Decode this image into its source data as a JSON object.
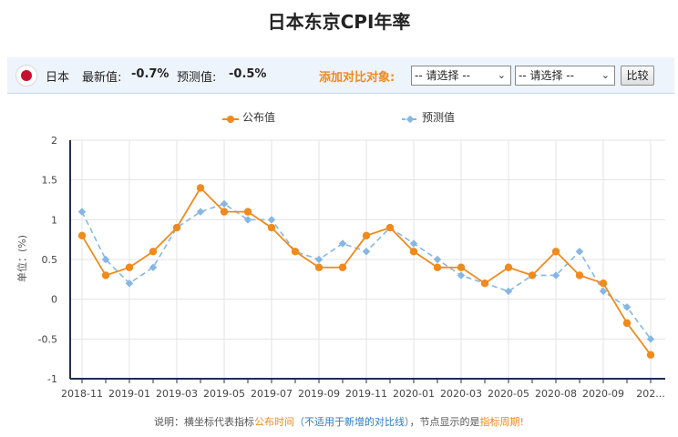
{
  "title": "日本东京CPI年率",
  "info": {
    "country": "日本",
    "latest_label": "最新值:",
    "latest_value": "-0.7%",
    "predicted_label": "预测值:",
    "predicted_value": "-0.5%",
    "compare_label": "添加对比对象:",
    "select1": "-- 请选择 --",
    "select2": "-- 请选择 --",
    "compare_button": "比较",
    "flag_color": "#c8102e"
  },
  "note": {
    "prefix": "说明：横坐标代表指标",
    "hl1": "公布时间",
    "paren": "（不适用于新增的对比线）",
    "mid": "，节点显示的是",
    "hl2": "指标周期!"
  },
  "chart_data": {
    "type": "line",
    "ylabel": "单位：(%)",
    "ylim": [
      -1,
      2
    ],
    "yticks": [
      "2",
      "1.5",
      "1",
      "0.5",
      "0",
      "-0.5",
      "-1"
    ],
    "xtick_labels": [
      "2018-11",
      "2019-01",
      "2019-03",
      "2019-05",
      "2019-07",
      "2019-09",
      "2019-11",
      "2020-01",
      "2020-03",
      "2020-05",
      "2020-08",
      "2020-09",
      "202..."
    ],
    "grid": true,
    "legend": "top",
    "colors": {
      "published": "#f08a1c",
      "predicted": "#86b7e4",
      "axis": "#1f2d5a"
    },
    "series": [
      {
        "name": "公布值",
        "values": [
          0.8,
          0.3,
          0.4,
          0.6,
          0.9,
          1.4,
          1.1,
          1.1,
          0.9,
          0.6,
          0.4,
          0.4,
          0.8,
          0.9,
          0.6,
          0.4,
          0.4,
          0.2,
          0.4,
          0.3,
          0.6,
          0.3,
          0.2,
          -0.3,
          -0.7
        ]
      },
      {
        "name": "预测值",
        "values": [
          1.1,
          0.5,
          0.2,
          0.4,
          0.9,
          1.1,
          1.2,
          1.0,
          1.0,
          0.6,
          0.5,
          0.7,
          0.6,
          0.9,
          0.7,
          0.5,
          0.3,
          0.2,
          0.1,
          0.3,
          0.3,
          0.6,
          0.1,
          -0.1,
          -0.5
        ]
      }
    ]
  }
}
